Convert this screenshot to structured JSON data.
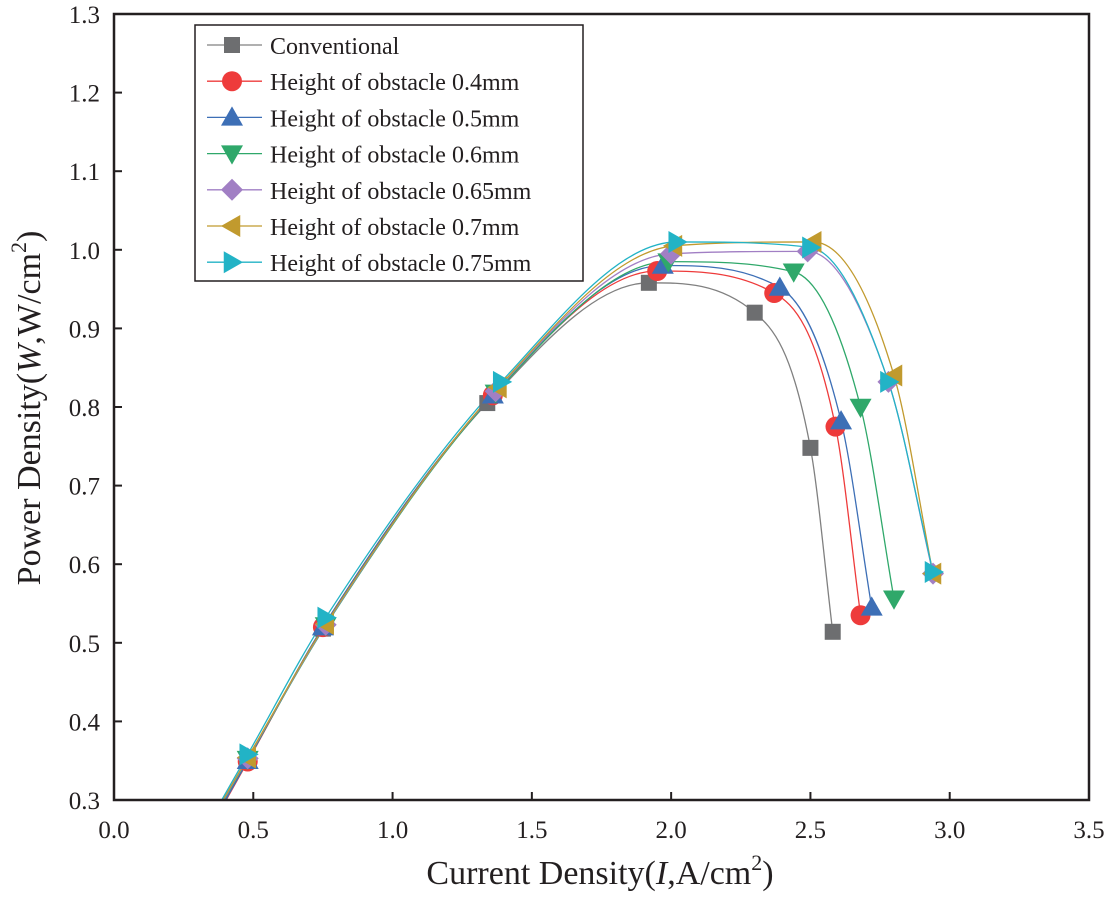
{
  "chart_data": {
    "type": "line",
    "title": "",
    "xlabel_parts": [
      "Current Density(",
      "I",
      ",A/cm",
      "2",
      ")"
    ],
    "ylabel_parts": [
      "Power Density(",
      "W",
      ",W/cm",
      "2",
      ")"
    ],
    "xlim": [
      0,
      3.5
    ],
    "ylim": [
      0.3,
      1.3
    ],
    "xticks": [
      "0.0",
      "0.5",
      "1.0",
      "1.5",
      "2.0",
      "2.5",
      "3.0",
      "3.5"
    ],
    "yticks": [
      "0.3",
      "0.4",
      "0.5",
      "0.6",
      "0.7",
      "0.8",
      "0.9",
      "1.0",
      "1.1",
      "1.2",
      "1.3"
    ],
    "grid": false,
    "legend_position": "top-left",
    "series": [
      {
        "name": "Conventional",
        "marker": "square",
        "color": "#6d6e70",
        "line_color": "#808080",
        "x": [
          0.48,
          0.75,
          1.34,
          1.92,
          2.3,
          2.5,
          2.58
        ],
        "y": [
          0.35,
          0.518,
          0.805,
          0.958,
          0.92,
          0.748,
          0.514
        ]
      },
      {
        "name": "Height of obstacle 0.4mm",
        "marker": "circle",
        "color": "#ee3b3b",
        "line_color": "#ee3b3b",
        "x": [
          0.48,
          0.75,
          1.36,
          1.95,
          2.37,
          2.59,
          2.68
        ],
        "y": [
          0.349,
          0.52,
          0.815,
          0.973,
          0.945,
          0.775,
          0.535
        ]
      },
      {
        "name": "Height of obstacle 0.5mm",
        "marker": "triangle-up",
        "color": "#3d6fb6",
        "line_color": "#3d6fb6",
        "x": [
          0.48,
          0.75,
          1.36,
          1.97,
          2.39,
          2.61,
          2.72
        ],
        "y": [
          0.35,
          0.52,
          0.815,
          0.98,
          0.952,
          0.782,
          0.545
        ]
      },
      {
        "name": "Height of obstacle 0.6mm",
        "marker": "triangle-down",
        "color": "#2fa86a",
        "line_color": "#2fa86a",
        "x": [
          0.48,
          0.76,
          1.37,
          1.99,
          2.44,
          2.68,
          2.8
        ],
        "y": [
          0.352,
          0.522,
          0.818,
          0.985,
          0.972,
          0.8,
          0.556
        ]
      },
      {
        "name": "Height of obstacle 0.65mm",
        "marker": "diamond",
        "color": "#a17fc4",
        "line_color": "#a17fc4",
        "x": [
          0.48,
          0.76,
          1.37,
          2.0,
          2.49,
          2.78,
          2.94
        ],
        "y": [
          0.353,
          0.523,
          0.82,
          0.995,
          0.998,
          0.832,
          0.588
        ]
      },
      {
        "name": "Height of obstacle 0.7mm",
        "marker": "triangle-left",
        "color": "#c19a2e",
        "line_color": "#c19a2e",
        "x": [
          0.48,
          0.76,
          1.38,
          2.01,
          2.51,
          2.8,
          2.94
        ],
        "y": [
          0.354,
          0.524,
          0.825,
          1.005,
          1.01,
          0.84,
          0.588
        ]
      },
      {
        "name": "Height of obstacle 0.75mm",
        "marker": "triangle-right",
        "color": "#22b3c6",
        "line_color": "#22b3c6",
        "x": [
          0.48,
          0.76,
          1.39,
          2.02,
          2.5,
          2.78,
          2.94
        ],
        "y": [
          0.358,
          0.532,
          0.832,
          1.01,
          1.003,
          0.832,
          0.59
        ]
      }
    ]
  }
}
